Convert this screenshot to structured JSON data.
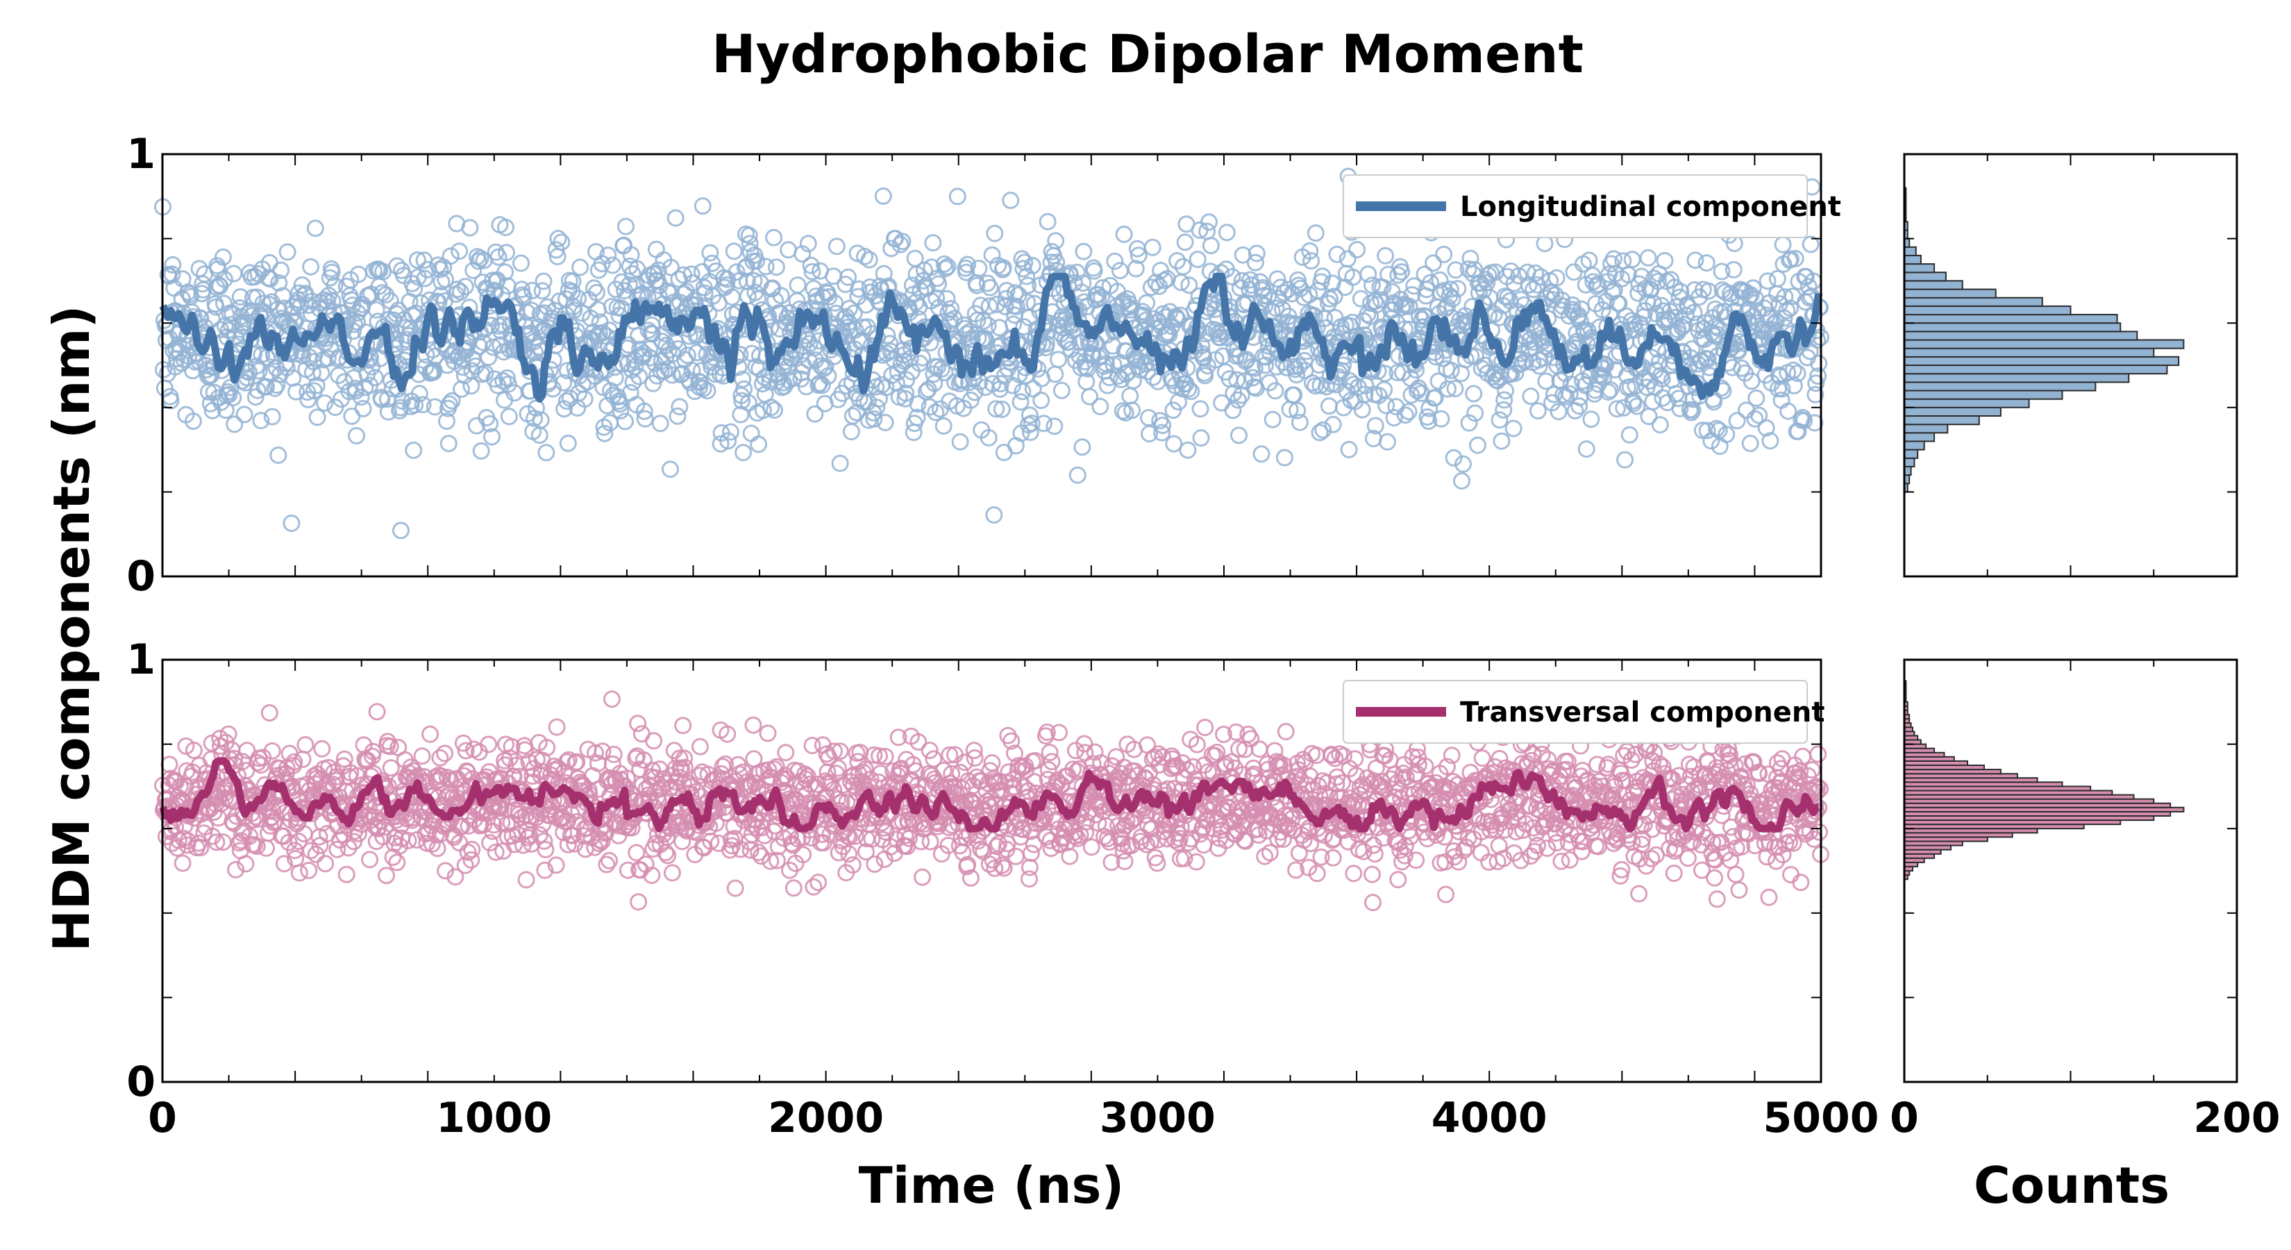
{
  "figure": {
    "title": "Hydrophobic Dipolar Moment",
    "xlabel": "Time (ns)",
    "ylabel": "HDM components (nm)",
    "hist_xlabel": "Counts"
  },
  "colors": {
    "longitudinal": "#4575a8",
    "longitudinal_light": "#93b3d3",
    "transversal": "#a5306e",
    "transversal_light": "#d58db0",
    "hist_edge": "#2b2b2b"
  },
  "chart_data": [
    {
      "id": "longitudinal-timeseries",
      "type": "scatter",
      "xlim": [
        0,
        5000
      ],
      "ylim": [
        0,
        1
      ],
      "xticks": [
        0,
        1000,
        2000,
        3000,
        4000,
        5000
      ],
      "xtick_labels": [
        "",
        "",
        "",
        "",
        "",
        ""
      ],
      "yticks": [
        0,
        1
      ],
      "ytick_labels": [
        "0",
        "1"
      ],
      "legend": {
        "label": "Longitudinal component",
        "position": "top-right"
      },
      "series": [
        {
          "kind": "points",
          "n": 2500,
          "mean": 0.57,
          "std": 0.11,
          "x_range": [
            0,
            5000
          ]
        },
        {
          "kind": "running-average",
          "label": "Longitudinal component",
          "mean": 0.57,
          "range": [
            0.41,
            0.71
          ]
        }
      ]
    },
    {
      "id": "transversal-timeseries",
      "type": "scatter",
      "xlim": [
        0,
        5000
      ],
      "ylim": [
        0,
        1
      ],
      "xticks": [
        0,
        1000,
        2000,
        3000,
        4000,
        5000
      ],
      "xtick_labels": [
        "0",
        "1000",
        "2000",
        "3000",
        "4000",
        "5000"
      ],
      "yticks": [
        0,
        1
      ],
      "ytick_labels": [
        "0",
        "1"
      ],
      "legend": {
        "label": "Transversal component",
        "position": "top-right"
      },
      "series": [
        {
          "kind": "points",
          "n": 2500,
          "mean": 0.66,
          "std": 0.07,
          "x_range": [
            0,
            5000
          ]
        },
        {
          "kind": "running-average",
          "label": "Transversal component",
          "mean": 0.66,
          "range": [
            0.6,
            0.76
          ]
        }
      ]
    },
    {
      "id": "longitudinal-histogram",
      "type": "bar",
      "orientation": "horizontal",
      "xlim": [
        0,
        200
      ],
      "ylim": [
        0,
        1
      ],
      "xticks": [
        0,
        200
      ],
      "xtick_labels": [
        "",
        ""
      ],
      "bin_width": 0.02,
      "bins_y": [
        0.2,
        0.22,
        0.24,
        0.26,
        0.28,
        0.3,
        0.32,
        0.34,
        0.36,
        0.38,
        0.4,
        0.42,
        0.44,
        0.46,
        0.48,
        0.5,
        0.52,
        0.54,
        0.56,
        0.58,
        0.6,
        0.62,
        0.64,
        0.66,
        0.68,
        0.7,
        0.72,
        0.74,
        0.76,
        0.78,
        0.8,
        0.82,
        0.84,
        0.86,
        0.88,
        0.9
      ],
      "counts": [
        2,
        3,
        4,
        6,
        8,
        12,
        18,
        26,
        45,
        58,
        75,
        95,
        115,
        135,
        158,
        165,
        150,
        168,
        140,
        130,
        128,
        100,
        83,
        55,
        35,
        25,
        18,
        10,
        7,
        3,
        2,
        2,
        1,
        1,
        1,
        1
      ]
    },
    {
      "id": "transversal-histogram",
      "type": "bar",
      "orientation": "horizontal",
      "xlim": [
        0,
        200
      ],
      "ylim": [
        0,
        1
      ],
      "xticks": [
        0,
        200
      ],
      "xtick_labels": [
        "0",
        "200"
      ],
      "bin_width": 0.01,
      "bins_y": [
        0.48,
        0.49,
        0.5,
        0.51,
        0.52,
        0.53,
        0.54,
        0.55,
        0.56,
        0.57,
        0.58,
        0.59,
        0.6,
        0.61,
        0.62,
        0.63,
        0.64,
        0.65,
        0.66,
        0.67,
        0.68,
        0.69,
        0.7,
        0.71,
        0.72,
        0.73,
        0.74,
        0.75,
        0.76,
        0.77,
        0.78,
        0.79,
        0.8,
        0.81,
        0.82,
        0.83,
        0.84,
        0.85,
        0.86,
        0.87,
        0.88,
        0.89,
        0.9,
        0.91,
        0.92,
        0.93,
        0.94
      ],
      "counts": [
        2,
        3,
        5,
        8,
        12,
        18,
        22,
        28,
        35,
        50,
        65,
        80,
        108,
        130,
        150,
        160,
        168,
        160,
        150,
        138,
        125,
        112,
        95,
        80,
        68,
        58,
        48,
        38,
        30,
        24,
        18,
        13,
        10,
        8,
        6,
        5,
        4,
        3,
        3,
        2,
        2,
        2,
        1,
        1,
        1,
        1,
        1
      ]
    }
  ]
}
